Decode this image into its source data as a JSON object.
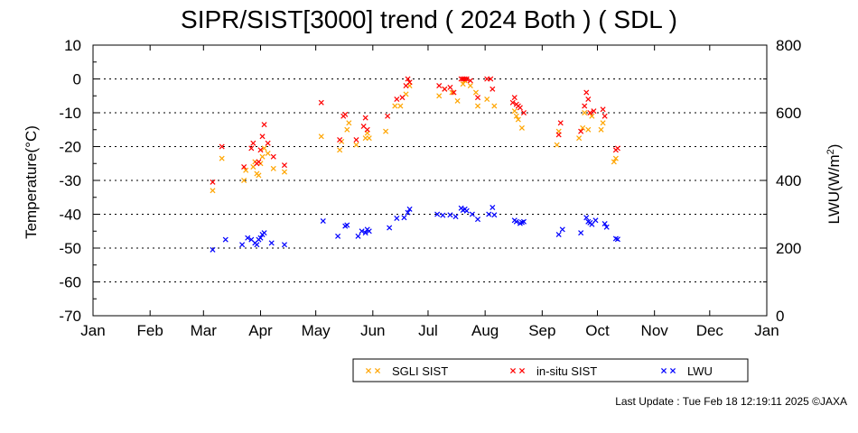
{
  "title": "SIPR/SIST[3000] trend ( 2024 Both ) ( SDL )",
  "footer": "Last Update : Tue Feb 18 12:19:11 2025  ©JAXA",
  "colors": {
    "sgli": "#ffa500",
    "insitu": "#ff0000",
    "lwu": "#0000ff",
    "axis": "#000000",
    "grid": "#000000"
  },
  "chart_data": {
    "type": "scatter",
    "title": "SIPR/SIST[3000] trend ( 2024 Both ) ( SDL )",
    "x_axis": {
      "ticks": [
        "Jan",
        "Feb",
        "Mar",
        "Apr",
        "May",
        "Jun",
        "Jul",
        "Aug",
        "Sep",
        "Oct",
        "Nov",
        "Dec",
        "Jan"
      ],
      "range": [
        "2024-01-01",
        "2025-01-01"
      ]
    },
    "y_left": {
      "label": "Temperature(°C)",
      "min": -70,
      "max": 10,
      "ticks": [
        10,
        0,
        -10,
        -20,
        -30,
        -40,
        -50,
        -60,
        -70
      ]
    },
    "y_right": {
      "label": "LWU(W/m",
      "label_sup": "2",
      "label_end": ")",
      "min": 0,
      "max": 800,
      "ticks": [
        800,
        600,
        400,
        200,
        0
      ]
    },
    "grid": "horizontal dotted",
    "legend": {
      "position": "bottom-center",
      "entries": [
        {
          "label": "SGLI SIST",
          "series": "sgli"
        },
        {
          "label": "in-situ SIST",
          "series": "insitu"
        },
        {
          "label": "LWU",
          "series": "lwu"
        }
      ]
    },
    "series": [
      {
        "name": "SGLI SIST",
        "key": "sgli",
        "axis": "left",
        "marker": "x",
        "points": [
          [
            "2024-03-06",
            -33
          ],
          [
            "2024-03-11",
            -23.5
          ],
          [
            "2024-03-23",
            -30
          ],
          [
            "2024-03-24",
            -27
          ],
          [
            "2024-03-28",
            -26
          ],
          [
            "2024-03-29",
            -24.5
          ],
          [
            "2024-03-30",
            -28
          ],
          [
            "2024-03-31",
            -28.5
          ],
          [
            "2024-04-01",
            -25
          ],
          [
            "2024-04-02",
            -23
          ],
          [
            "2024-04-03",
            -20.5
          ],
          [
            "2024-04-05",
            -22
          ],
          [
            "2024-04-08",
            -26.5
          ],
          [
            "2024-04-14",
            -27.5
          ],
          [
            "2024-05-04",
            -17
          ],
          [
            "2024-05-14",
            -21
          ],
          [
            "2024-05-15",
            -18.5
          ],
          [
            "2024-05-18",
            -15
          ],
          [
            "2024-05-19",
            -13
          ],
          [
            "2024-05-23",
            -19.5
          ],
          [
            "2024-05-28",
            -17.5
          ],
          [
            "2024-05-29",
            -16
          ],
          [
            "2024-05-30",
            -17.5
          ],
          [
            "2024-06-08",
            -15.5
          ],
          [
            "2024-06-13",
            -8
          ],
          [
            "2024-06-16",
            -8
          ],
          [
            "2024-06-19",
            -4.5
          ],
          [
            "2024-06-21",
            -2
          ],
          [
            "2024-07-07",
            -5
          ],
          [
            "2024-07-10",
            -3
          ],
          [
            "2024-07-14",
            -4
          ],
          [
            "2024-07-17",
            -6.5
          ],
          [
            "2024-07-20",
            -1.5
          ],
          [
            "2024-07-21",
            -0.5
          ],
          [
            "2024-07-24",
            -2
          ],
          [
            "2024-07-27",
            -4
          ],
          [
            "2024-07-28",
            -8
          ],
          [
            "2024-08-02",
            -6
          ],
          [
            "2024-08-06",
            -8
          ],
          [
            "2024-08-17",
            -9.5
          ],
          [
            "2024-08-18",
            -11
          ],
          [
            "2024-08-19",
            -12
          ],
          [
            "2024-08-21",
            -14.5
          ],
          [
            "2024-09-09",
            -19.5
          ],
          [
            "2024-09-10",
            -15.5
          ],
          [
            "2024-09-21",
            -17.5
          ],
          [
            "2024-09-23",
            -14.5
          ],
          [
            "2024-09-24",
            -10
          ],
          [
            "2024-09-26",
            -15
          ],
          [
            "2024-09-28",
            -11
          ],
          [
            "2024-10-03",
            -15
          ],
          [
            "2024-10-04",
            -13
          ],
          [
            "2024-10-10",
            -24.5
          ],
          [
            "2024-10-11",
            -23.5
          ]
        ]
      },
      {
        "name": "in-situ SIST",
        "key": "insitu",
        "axis": "left",
        "marker": "x",
        "points": [
          [
            "2024-03-06",
            -30.5
          ],
          [
            "2024-03-11",
            -20
          ],
          [
            "2024-03-23",
            -26
          ],
          [
            "2024-03-27",
            -20.5
          ],
          [
            "2024-03-28",
            -19
          ],
          [
            "2024-03-30",
            -25
          ],
          [
            "2024-03-31",
            -24.5
          ],
          [
            "2024-04-01",
            -21
          ],
          [
            "2024-04-02",
            -17
          ],
          [
            "2024-04-03",
            -13.5
          ],
          [
            "2024-04-05",
            -19
          ],
          [
            "2024-04-08",
            -23
          ],
          [
            "2024-04-14",
            -25.5
          ],
          [
            "2024-05-04",
            -7
          ],
          [
            "2024-05-14",
            -18
          ],
          [
            "2024-05-16",
            -11
          ],
          [
            "2024-05-17",
            -10.5
          ],
          [
            "2024-05-23",
            -18
          ],
          [
            "2024-05-27",
            -14
          ],
          [
            "2024-05-28",
            -11.5
          ],
          [
            "2024-05-29",
            -15
          ],
          [
            "2024-06-09",
            -11
          ],
          [
            "2024-06-14",
            -6
          ],
          [
            "2024-06-17",
            -5.5
          ],
          [
            "2024-06-19",
            -2
          ],
          [
            "2024-06-20",
            0
          ],
          [
            "2024-06-21",
            -1
          ],
          [
            "2024-07-07",
            -2
          ],
          [
            "2024-07-10",
            -3
          ],
          [
            "2024-07-13",
            -2.5
          ],
          [
            "2024-07-15",
            -4
          ],
          [
            "2024-07-19",
            0
          ],
          [
            "2024-07-20",
            0
          ],
          [
            "2024-07-21",
            0
          ],
          [
            "2024-07-22",
            0
          ],
          [
            "2024-07-24",
            -0.5
          ],
          [
            "2024-07-28",
            -5.5
          ],
          [
            "2024-08-02",
            0
          ],
          [
            "2024-08-04",
            0
          ],
          [
            "2024-08-05",
            -3
          ],
          [
            "2024-08-16",
            -7
          ],
          [
            "2024-08-17",
            -5.5
          ],
          [
            "2024-08-18",
            -7.5
          ],
          [
            "2024-08-19",
            -8
          ],
          [
            "2024-08-20",
            -8.5
          ],
          [
            "2024-08-22",
            -10
          ],
          [
            "2024-09-10",
            -16.5
          ],
          [
            "2024-09-11",
            -13
          ],
          [
            "2024-09-22",
            -15.5
          ],
          [
            "2024-09-24",
            -8
          ],
          [
            "2024-09-25",
            -4
          ],
          [
            "2024-09-26",
            -6
          ],
          [
            "2024-09-27",
            -10
          ],
          [
            "2024-09-29",
            -9.5
          ],
          [
            "2024-10-04",
            -9
          ],
          [
            "2024-10-05",
            -11
          ],
          [
            "2024-10-11",
            -21
          ],
          [
            "2024-10-12",
            -20.5
          ]
        ]
      },
      {
        "name": "LWU",
        "key": "lwu",
        "axis": "right",
        "marker": "x",
        "points": [
          [
            "2024-03-06",
            195
          ],
          [
            "2024-03-13",
            225
          ],
          [
            "2024-03-22",
            210
          ],
          [
            "2024-03-25",
            230
          ],
          [
            "2024-03-27",
            225
          ],
          [
            "2024-03-29",
            215
          ],
          [
            "2024-03-30",
            210
          ],
          [
            "2024-03-31",
            225
          ],
          [
            "2024-04-01",
            230
          ],
          [
            "2024-04-02",
            240
          ],
          [
            "2024-04-03",
            245
          ],
          [
            "2024-04-07",
            215
          ],
          [
            "2024-04-14",
            210
          ],
          [
            "2024-05-05",
            280
          ],
          [
            "2024-05-13",
            235
          ],
          [
            "2024-05-17",
            265
          ],
          [
            "2024-05-18",
            268
          ],
          [
            "2024-05-24",
            235
          ],
          [
            "2024-05-26",
            250
          ],
          [
            "2024-05-28",
            245
          ],
          [
            "2024-05-29",
            255
          ],
          [
            "2024-05-30",
            250
          ],
          [
            "2024-06-10",
            260
          ],
          [
            "2024-06-14",
            288
          ],
          [
            "2024-06-18",
            290
          ],
          [
            "2024-06-20",
            305
          ],
          [
            "2024-06-21",
            315
          ],
          [
            "2024-07-06",
            300
          ],
          [
            "2024-07-09",
            297
          ],
          [
            "2024-07-13",
            298
          ],
          [
            "2024-07-16",
            293
          ],
          [
            "2024-07-19",
            318
          ],
          [
            "2024-07-20",
            312
          ],
          [
            "2024-07-21",
            315
          ],
          [
            "2024-07-22",
            310
          ],
          [
            "2024-07-25",
            300
          ],
          [
            "2024-07-28",
            285
          ],
          [
            "2024-08-03",
            300
          ],
          [
            "2024-08-05",
            320
          ],
          [
            "2024-08-06",
            298
          ],
          [
            "2024-08-17",
            282
          ],
          [
            "2024-08-18",
            278
          ],
          [
            "2024-08-20",
            273
          ],
          [
            "2024-08-21",
            276
          ],
          [
            "2024-08-22",
            278
          ],
          [
            "2024-09-10",
            240
          ],
          [
            "2024-09-12",
            255
          ],
          [
            "2024-09-22",
            245
          ],
          [
            "2024-09-25",
            290
          ],
          [
            "2024-09-26",
            278
          ],
          [
            "2024-09-27",
            275
          ],
          [
            "2024-09-28",
            270
          ],
          [
            "2024-09-30",
            282
          ],
          [
            "2024-10-05",
            272
          ],
          [
            "2024-10-06",
            262
          ],
          [
            "2024-10-11",
            228
          ],
          [
            "2024-10-12",
            226
          ]
        ]
      }
    ]
  }
}
